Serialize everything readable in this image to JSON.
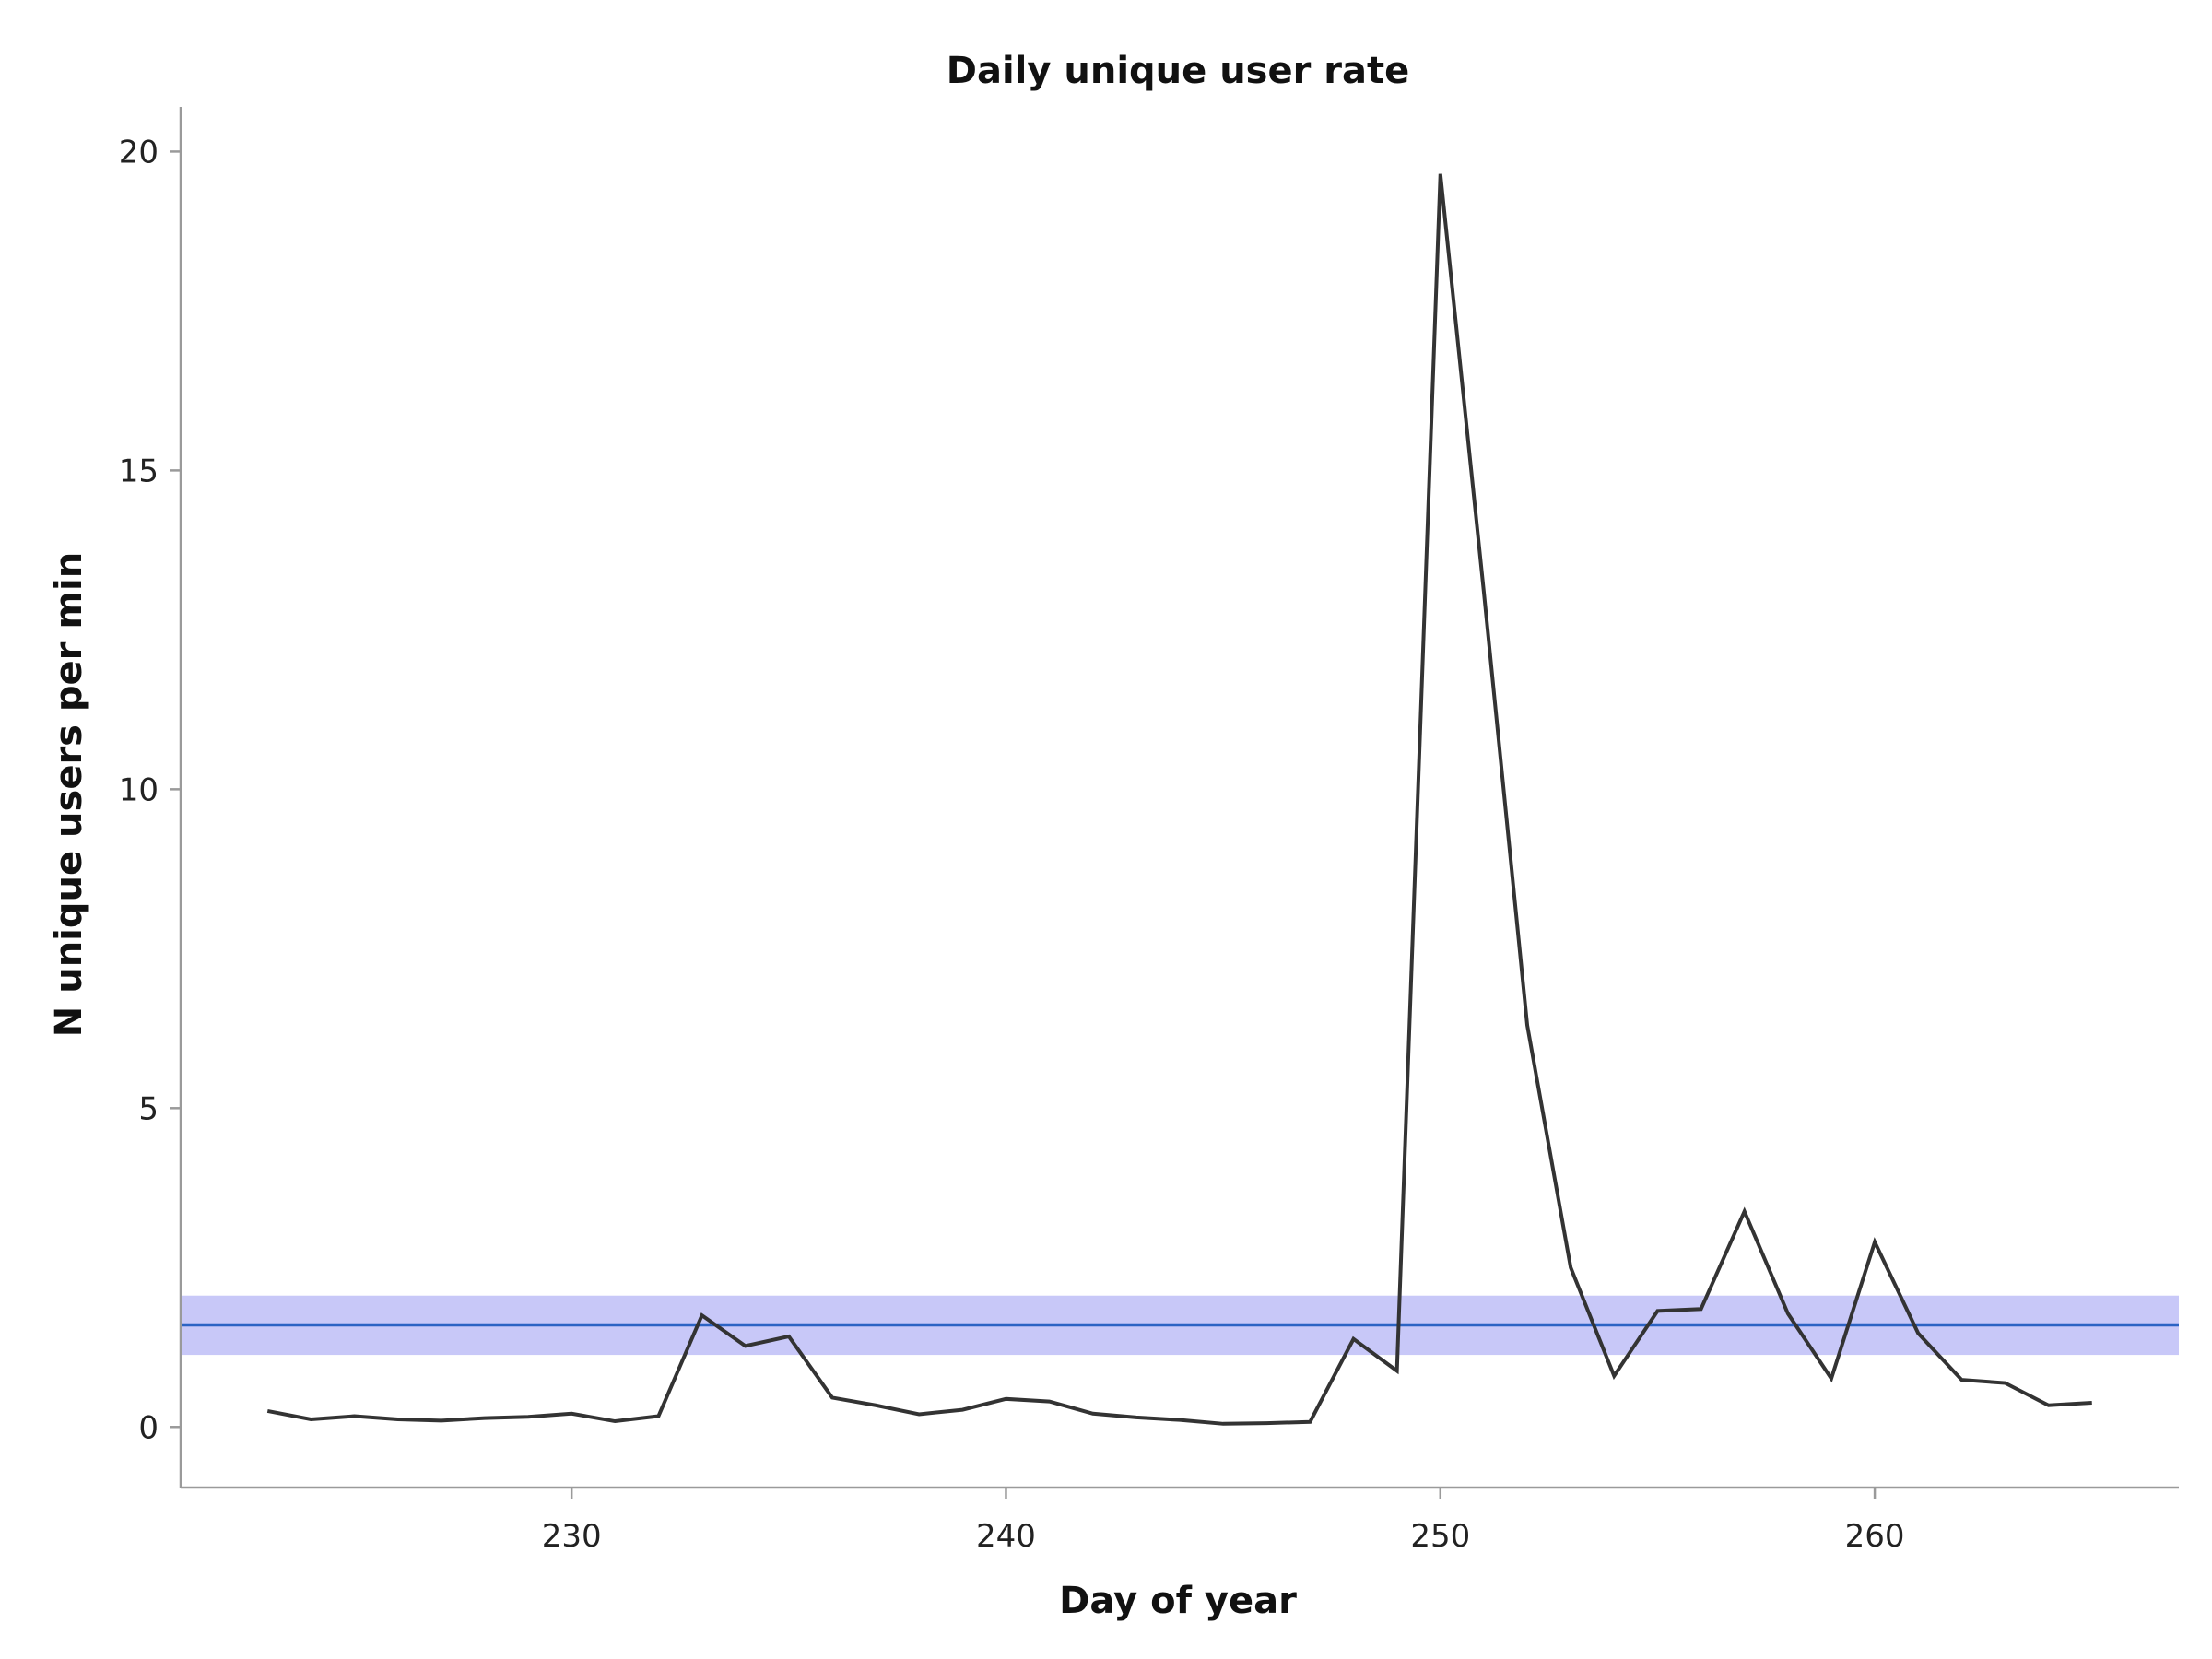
{
  "chart_data": {
    "type": "line",
    "title": "Daily unique user rate",
    "xlabel": "Day of year",
    "ylabel": "N unique users per min",
    "xlim": [
      221,
      267
    ],
    "ylim": [
      -0.95,
      20.7
    ],
    "xticks": [
      230,
      240,
      250,
      260
    ],
    "yticks": [
      0,
      5,
      10,
      15,
      20
    ],
    "grid": false,
    "legend": "none",
    "series": [
      {
        "color": "#333333",
        "x": [
          223,
          224,
          225,
          226,
          227,
          228,
          229,
          230,
          231,
          232,
          233,
          234,
          235,
          236,
          237,
          238,
          239,
          240,
          241,
          242,
          243,
          244,
          245,
          246,
          247,
          248,
          249,
          250,
          251,
          252,
          253,
          254,
          255,
          256,
          257,
          258,
          259,
          260,
          261,
          262,
          263,
          264,
          265
        ],
        "y": [
          0.25,
          0.12,
          0.17,
          0.12,
          0.1,
          0.14,
          0.16,
          0.21,
          0.09,
          0.17,
          1.75,
          1.27,
          1.42,
          0.46,
          0.34,
          0.2,
          0.27,
          0.44,
          0.4,
          0.21,
          0.15,
          0.11,
          0.05,
          0.06,
          0.08,
          1.38,
          0.88,
          19.65,
          13.1,
          6.3,
          2.5,
          0.8,
          1.82,
          1.85,
          3.38,
          1.78,
          0.76,
          2.9,
          1.47,
          0.74,
          0.69,
          0.34,
          0.38
        ]
      }
    ],
    "reference_band": {
      "y_low": 1.13,
      "y_high": 2.06,
      "color": "#c8c8f8"
    },
    "reference_line": {
      "y": 1.6,
      "color": "#2b63c4"
    }
  }
}
